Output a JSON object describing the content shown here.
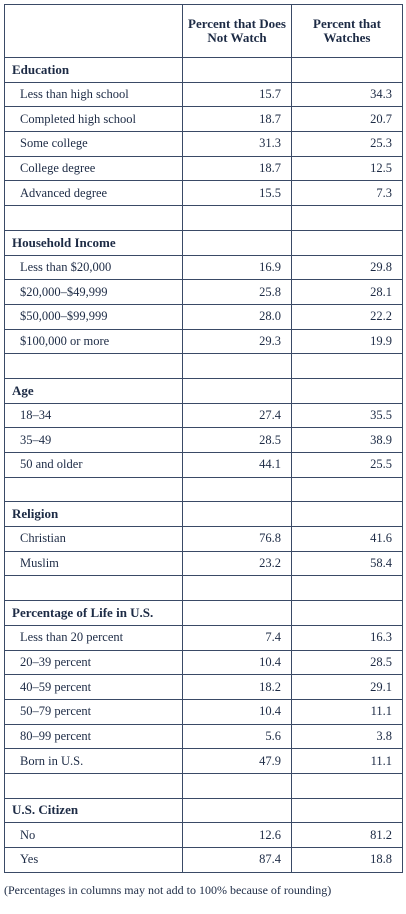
{
  "header": {
    "columns": [
      "Percent that Does Not Watch",
      "Percent that Watches"
    ]
  },
  "sections": [
    {
      "title": "Education",
      "rows": [
        [
          "Less than high school",
          "15.7",
          "34.3"
        ],
        [
          "Completed high school",
          "18.7",
          "20.7"
        ],
        [
          "Some college",
          "31.3",
          "25.3"
        ],
        [
          "College degree",
          "18.7",
          "12.5"
        ],
        [
          "Advanced degree",
          "15.5",
          "7.3"
        ]
      ]
    },
    {
      "title": "Household Income",
      "rows": [
        [
          "Less than $20,000",
          "16.9",
          "29.8"
        ],
        [
          "$20,000–$49,999",
          "25.8",
          "28.1"
        ],
        [
          "$50,000–$99,999",
          "28.0",
          "22.2"
        ],
        [
          "$100,000 or more",
          "29.3",
          "19.9"
        ]
      ]
    },
    {
      "title": "Age",
      "rows": [
        [
          "18–34",
          "27.4",
          "35.5"
        ],
        [
          "35–49",
          "28.5",
          "38.9"
        ],
        [
          "50 and older",
          "44.1",
          "25.5"
        ]
      ]
    },
    {
      "title": "Religion",
      "rows": [
        [
          "Christian",
          "76.8",
          "41.6"
        ],
        [
          "Muslim",
          "23.2",
          "58.4"
        ]
      ]
    },
    {
      "title": "Percentage of Life in U.S.",
      "rows": [
        [
          "Less than 20 percent",
          "7.4",
          "16.3"
        ],
        [
          "20–39 percent",
          "10.4",
          "28.5"
        ],
        [
          "40–59 percent",
          "18.2",
          "29.1"
        ],
        [
          "50–79 percent",
          "10.4",
          "11.1"
        ],
        [
          "80–99 percent",
          "5.6",
          "3.8"
        ],
        [
          "Born in U.S.",
          "47.9",
          "11.1"
        ]
      ]
    },
    {
      "title": "U.S. Citizen",
      "rows": [
        [
          "No",
          "12.6",
          "81.2"
        ],
        [
          "Yes",
          "87.4",
          "18.8"
        ]
      ]
    }
  ],
  "footnote": "(Percentages in columns may not add to 100% because of rounding)"
}
